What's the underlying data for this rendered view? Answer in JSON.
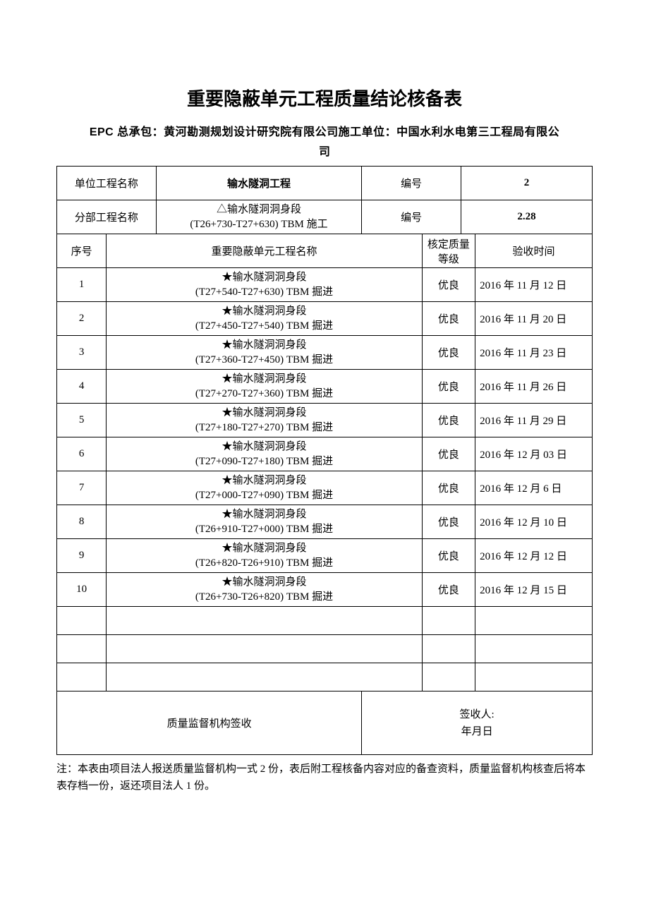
{
  "title": "重要隐蔽单元工程质量结论核备表",
  "epc_line": "EPC 总承包：黄河勘测规划设计研究院有限公司施工单位：中国水利水电第三工程局有限公",
  "epc_line2": "司",
  "header": {
    "unit_project_label": "单位工程名称",
    "unit_project_value": "输水隧洞工程",
    "unit_num_label": "编号",
    "unit_num_value": "2",
    "sub_project_label": "分部工程名称",
    "sub_project_value_l1": "△输水隧洞洞身段",
    "sub_project_value_l2": "(T26+730-T27+630) TBM 施工",
    "sub_num_label": "编号",
    "sub_num_value": "2.28"
  },
  "columns": {
    "seq": "序号",
    "name": "重要隐蔽单元工程名称",
    "grade": "核定质量等级",
    "date": "验收时间"
  },
  "rows": [
    {
      "seq": "1",
      "name_l1": "★输水隧洞洞身段",
      "name_l2": "(T27+540-T27+630) TBM 掘进",
      "grade": "优良",
      "date": "2016 年 11 月 12 日"
    },
    {
      "seq": "2",
      "name_l1": "★输水隧洞洞身段",
      "name_l2": "(T27+450-T27+540) TBM 掘进",
      "grade": "优良",
      "date": "2016 年 11 月 20 日"
    },
    {
      "seq": "3",
      "name_l1": "★输水隧洞洞身段",
      "name_l2": "(T27+360-T27+450) TBM 掘进",
      "grade": "优良",
      "date": "2016 年 11 月 23 日"
    },
    {
      "seq": "4",
      "name_l1": "★输水隧洞洞身段",
      "name_l2": "(T27+270-T27+360) TBM 掘进",
      "grade": "优良",
      "date": "2016 年 11 月 26 日"
    },
    {
      "seq": "5",
      "name_l1": "★输水隧洞洞身段",
      "name_l2": "(T27+180-T27+270) TBM 掘进",
      "grade": "优良",
      "date": "2016 年 11 月 29 日"
    },
    {
      "seq": "6",
      "name_l1": "★输水隧洞洞身段",
      "name_l2": "(T27+090-T27+180) TBM 掘进",
      "grade": "优良",
      "date": "2016 年 12 月 03 日"
    },
    {
      "seq": "7",
      "name_l1": "★输水隧洞洞身段",
      "name_l2": "(T27+000-T27+090) TBM 掘进",
      "grade": "优良",
      "date": "2016 年 12 月 6 日"
    },
    {
      "seq": "8",
      "name_l1": "★输水隧洞洞身段",
      "name_l2": "(T26+910-T27+000) TBM 掘进",
      "grade": "优良",
      "date": "2016 年 12 月 10 日"
    },
    {
      "seq": "9",
      "name_l1": "★输水隧洞洞身段",
      "name_l2": "(T26+820-T26+910) TBM 掘进",
      "grade": "优良",
      "date": "2016 年 12 月 12 日"
    },
    {
      "seq": "10",
      "name_l1": "★输水隧洞洞身段",
      "name_l2": "(T26+730-T26+820) TBM 掘进",
      "grade": "优良",
      "date": "2016 年 12 月 15 日"
    }
  ],
  "sign": {
    "left": "质量监督机构签收",
    "right_l1": "签收人:",
    "right_l2": "年月日"
  },
  "footnote": "注：本表由项目法人报送质量监督机构一式 2 份，表后附工程核备内容对应的备查资料，质量监督机构核查后将本表存档一份，返还项目法人 1 份。"
}
